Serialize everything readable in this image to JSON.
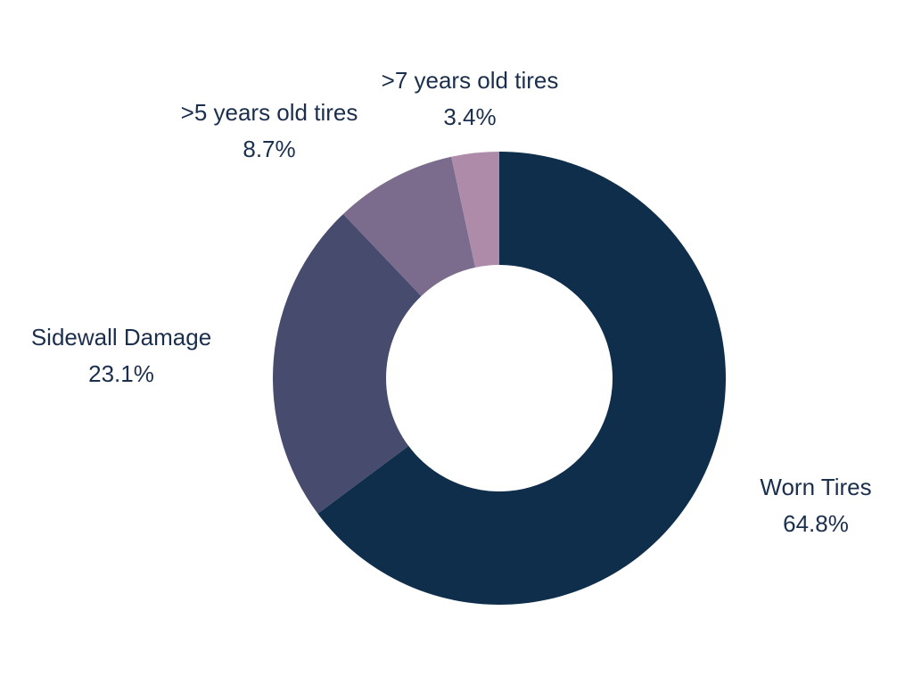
{
  "chart_data": {
    "type": "pie",
    "variant": "donut",
    "title": "",
    "slices": [
      {
        "label": "Worn Tires",
        "value": 64.8,
        "value_label": "64.8%",
        "color": "#0f2e4b"
      },
      {
        "label": "Sidewall Damage",
        "value": 23.1,
        "value_label": "23.1%",
        "color": "#474b6d"
      },
      {
        "label": ">5 years old tires",
        "value": 8.7,
        "value_label": "8.7%",
        "color": "#7b6c8e"
      },
      {
        "label": ">7 years old tires",
        "value": 3.4,
        "value_label": "3.4%",
        "color": "#af8baa"
      }
    ],
    "legend": "none",
    "label_color": "#1b2f4d"
  }
}
